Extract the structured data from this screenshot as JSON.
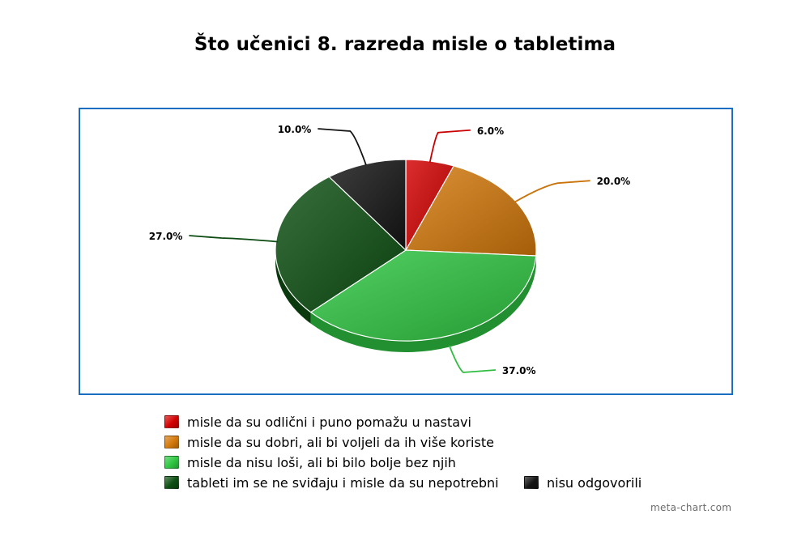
{
  "chart_data": {
    "type": "pie",
    "title": "Što učenici 8. razreda misle o tabletima",
    "slices": [
      {
        "label": "misle da su odlični i puno pomažu u nastavi",
        "value": 6.0,
        "value_label": "6.0%",
        "color": "#d40000"
      },
      {
        "label": "misle da su dobri, ali bi voljeli da ih više koriste",
        "value": 20.0,
        "value_label": "20.0%",
        "color": "#d4790a"
      },
      {
        "label": "misle da nisu loši, ali bi bilo bolje bez njih",
        "value": 37.0,
        "value_label": "37.0%",
        "color": "#2fc742"
      },
      {
        "label": "tableti im se ne sviđaju i misle da su nepotrebni",
        "value": 27.0,
        "value_label": "27.0%",
        "color": "#0d4f12"
      },
      {
        "label": "nisu odgovorili",
        "value": 10.0,
        "value_label": "10.0%",
        "color": "#141414"
      }
    ],
    "legend_position": "bottom"
  },
  "watermark": "meta-chart.com",
  "colors": {
    "frame_border": "#1a6ec2"
  }
}
